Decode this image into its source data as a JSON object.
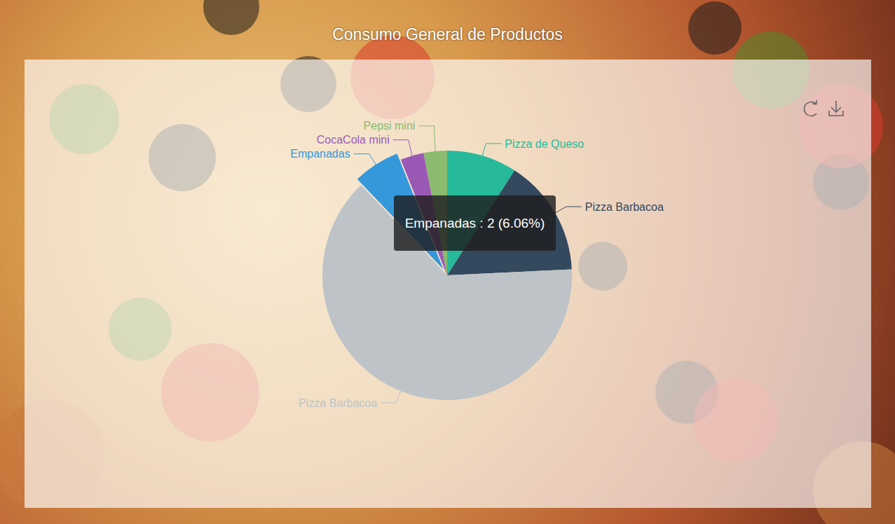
{
  "chart_data": {
    "type": "pie",
    "title": "Consumo General de Productos",
    "categories": [
      "Pizza de Queso",
      "Pizza Barbacoa",
      "Pizza Barbacoa",
      "Empanadas",
      "CocaCola mini",
      "Pepsi mini"
    ],
    "values": [
      3,
      5,
      21,
      2,
      1,
      1
    ],
    "colors": [
      "#26b99a",
      "#34495e",
      "#bdc3c7",
      "#3498db",
      "#9b59b6",
      "#8abb6f"
    ],
    "annotations": [
      "Empanadas : 2 (6.06%)"
    ]
  }
}
